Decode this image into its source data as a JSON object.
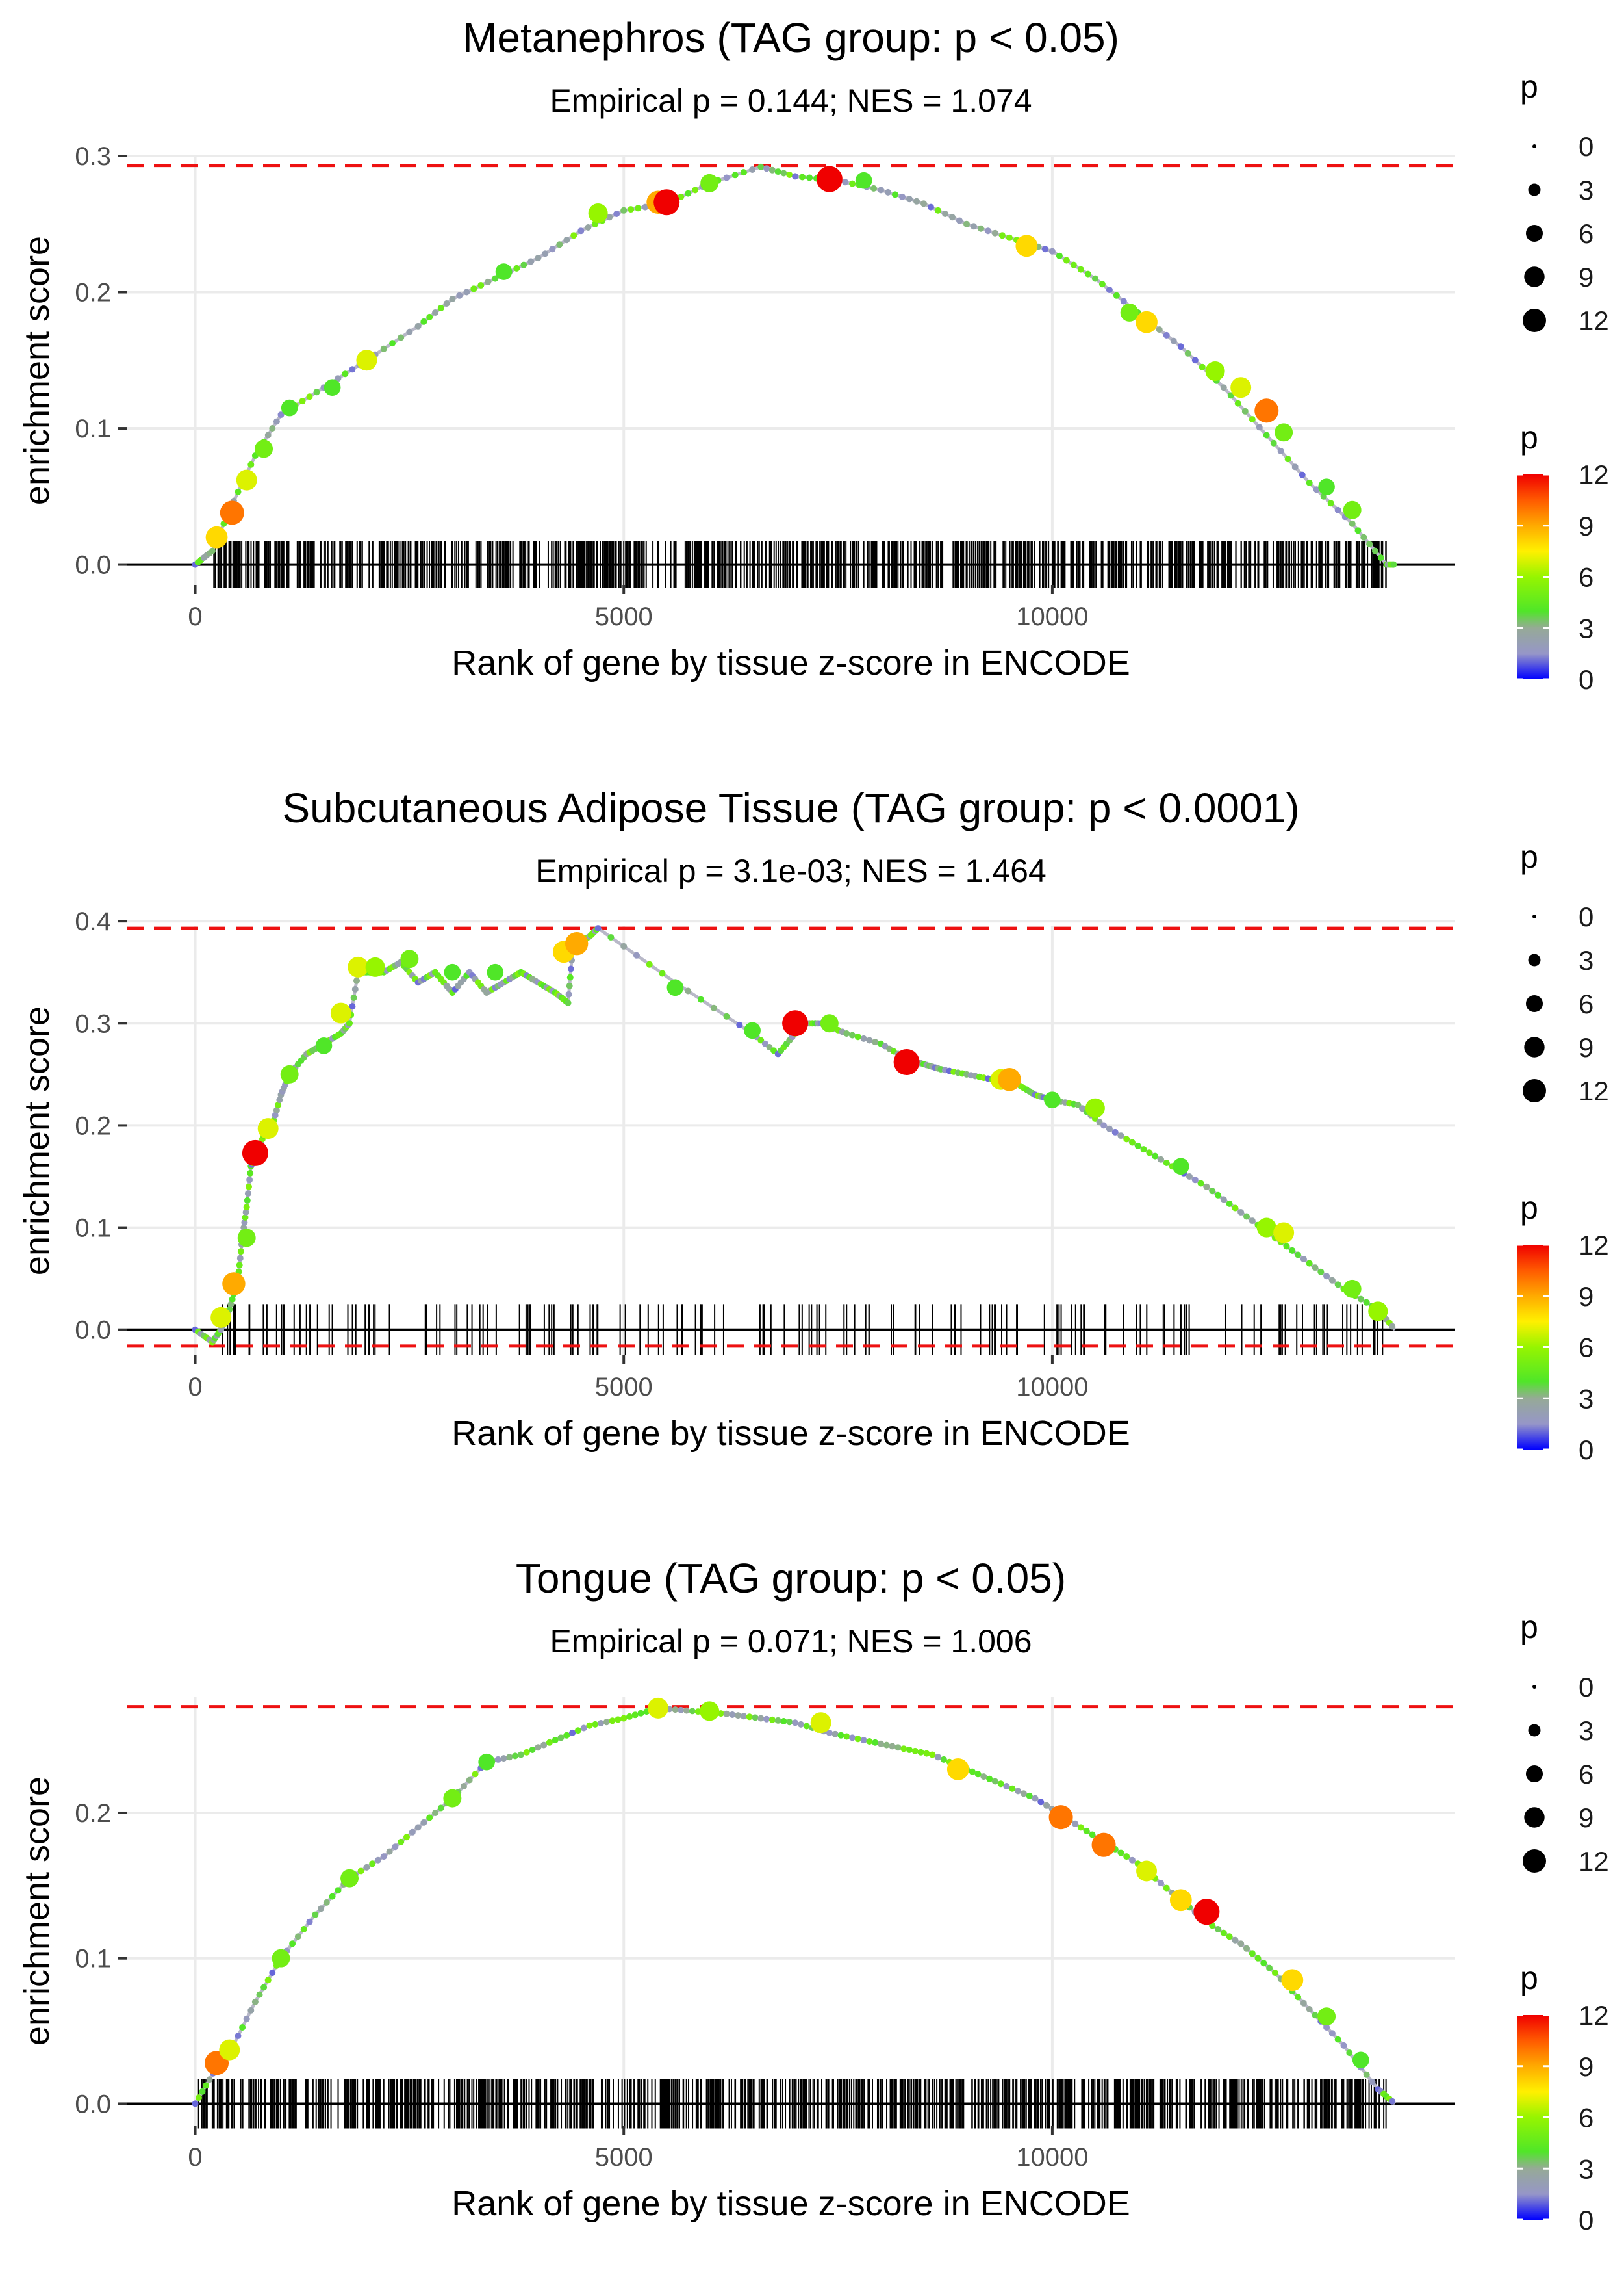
{
  "figure": {
    "type": "gsea-enrichment-panels",
    "n_panels": 3
  },
  "chart_data": [
    {
      "type": "line",
      "title": "Metanephros (TAG group: p < 0.05)",
      "subtitle": "Empirical p = 0.144; NES = 1.074",
      "xlabel": "Rank of gene by tissue z-score in ENCODE",
      "ylabel": "enrichment score",
      "xlim": [
        -800,
        14700
      ],
      "ylim": [
        -0.015,
        0.3
      ],
      "xticks": [
        0,
        5000,
        10000
      ],
      "xtick_labels": [
        "0",
        "5000",
        "10000"
      ],
      "yticks": [
        0,
        0.1,
        0.2,
        0.3
      ],
      "ytick_labels": [
        "0.0",
        "0.1",
        "0.2",
        "0.3"
      ],
      "max_es": 0.293,
      "min_es": 0,
      "n_total_genes": 14000,
      "rug": {
        "start": 200,
        "end": 13900,
        "count": 800,
        "height": 0.017
      },
      "curve_x": [
        0,
        200,
        400,
        700,
        1000,
        1500,
        2000,
        2600,
        3000,
        3500,
        4000,
        4500,
        5000,
        5500,
        6000,
        6600,
        7000,
        7500,
        8000,
        8500,
        9000,
        9500,
        10000,
        10500,
        11000,
        11500,
        12000,
        12500,
        13000,
        13500,
        13900,
        14000
      ],
      "curve_y": [
        0,
        0.01,
        0.04,
        0.08,
        0.11,
        0.13,
        0.15,
        0.175,
        0.195,
        0.21,
        0.225,
        0.245,
        0.26,
        0.265,
        0.28,
        0.292,
        0.285,
        0.282,
        0.275,
        0.265,
        0.25,
        0.24,
        0.23,
        0.21,
        0.185,
        0.16,
        0.13,
        0.095,
        0.06,
        0.03,
        0.0,
        0.0
      ],
      "points": [
        {
          "x": 250,
          "y": 0.02,
          "p": 8
        },
        {
          "x": 430,
          "y": 0.038,
          "p": 10
        },
        {
          "x": 600,
          "y": 0.062,
          "p": 7
        },
        {
          "x": 800,
          "y": 0.085,
          "p": 5
        },
        {
          "x": 1100,
          "y": 0.115,
          "p": 4
        },
        {
          "x": 1600,
          "y": 0.13,
          "p": 4
        },
        {
          "x": 2000,
          "y": 0.15,
          "p": 7
        },
        {
          "x": 3600,
          "y": 0.215,
          "p": 4
        },
        {
          "x": 4700,
          "y": 0.258,
          "p": 6
        },
        {
          "x": 5400,
          "y": 0.266,
          "p": 9
        },
        {
          "x": 5500,
          "y": 0.266,
          "p": 12
        },
        {
          "x": 6000,
          "y": 0.28,
          "p": 5
        },
        {
          "x": 7400,
          "y": 0.283,
          "p": 12
        },
        {
          "x": 7800,
          "y": 0.282,
          "p": 4
        },
        {
          "x": 9700,
          "y": 0.234,
          "p": 8
        },
        {
          "x": 10900,
          "y": 0.185,
          "p": 5
        },
        {
          "x": 11100,
          "y": 0.178,
          "p": 8
        },
        {
          "x": 11900,
          "y": 0.142,
          "p": 6
        },
        {
          "x": 12200,
          "y": 0.13,
          "p": 7
        },
        {
          "x": 12500,
          "y": 0.113,
          "p": 10
        },
        {
          "x": 12700,
          "y": 0.097,
          "p": 5
        },
        {
          "x": 13200,
          "y": 0.057,
          "p": 4
        },
        {
          "x": 13500,
          "y": 0.04,
          "p": 5
        }
      ],
      "legend_size": {
        "title": "p",
        "values": [
          0,
          3,
          6,
          9,
          12
        ],
        "labels": [
          "0",
          "3",
          "6",
          "9",
          "12"
        ]
      },
      "legend_color": {
        "title": "p",
        "values": [
          0,
          3,
          6,
          9,
          12
        ],
        "labels": [
          "0",
          "3",
          "6",
          "9",
          "12"
        ]
      }
    },
    {
      "type": "line",
      "title": "Subcutaneous Adipose Tissue (TAG group: p < 0.0001)",
      "subtitle": "Empirical p = 3.1e-03; NES = 1.464",
      "xlabel": "Rank of gene by tissue z-score in ENCODE",
      "ylabel": "enrichment score",
      "xlim": [
        -800,
        14700
      ],
      "ylim": [
        -0.025,
        0.395
      ],
      "xticks": [
        0,
        5000,
        10000
      ],
      "xtick_labels": [
        "0",
        "5000",
        "10000"
      ],
      "yticks": [
        0,
        0.1,
        0.2,
        0.3,
        0.4
      ],
      "ytick_labels": [
        "0.0",
        "0.1",
        "0.2",
        "0.3",
        "0.4"
      ],
      "max_es": 0.393,
      "min_es": -0.016,
      "n_total_genes": 14000,
      "rug": {
        "start": 200,
        "end": 13900,
        "count": 160,
        "height": 0.025
      },
      "curve_x": [
        0,
        200,
        300,
        400,
        500,
        550,
        600,
        650,
        700,
        800,
        900,
        1000,
        1100,
        1300,
        1500,
        1700,
        1800,
        1900,
        2000,
        2200,
        2400,
        2600,
        2800,
        3000,
        3200,
        3400,
        3600,
        3800,
        4000,
        4200,
        4350,
        4400,
        4500,
        4600,
        4700,
        5600,
        6500,
        6800,
        7000,
        7100,
        7300,
        7600,
        8000,
        8300,
        8500,
        8700,
        9000,
        9300,
        9600,
        9800,
        10000,
        10300,
        10600,
        11000,
        11400,
        11800,
        12200,
        12600,
        13000,
        13400,
        13800,
        14000
      ],
      "curve_y": [
        0,
        -0.012,
        0.0,
        0.02,
        0.05,
        0.09,
        0.12,
        0.16,
        0.17,
        0.19,
        0.2,
        0.23,
        0.25,
        0.27,
        0.28,
        0.29,
        0.3,
        0.35,
        0.35,
        0.35,
        0.36,
        0.34,
        0.35,
        0.33,
        0.35,
        0.33,
        0.34,
        0.35,
        0.34,
        0.33,
        0.32,
        0.37,
        0.38,
        0.385,
        0.393,
        0.34,
        0.29,
        0.27,
        0.29,
        0.3,
        0.3,
        0.29,
        0.28,
        0.265,
        0.26,
        0.255,
        0.25,
        0.245,
        0.24,
        0.23,
        0.225,
        0.22,
        0.2,
        0.18,
        0.16,
        0.14,
        0.115,
        0.09,
        0.065,
        0.04,
        0.02,
        0.0
      ],
      "points": [
        {
          "x": 300,
          "y": 0.012,
          "p": 7
        },
        {
          "x": 450,
          "y": 0.045,
          "p": 9
        },
        {
          "x": 600,
          "y": 0.09,
          "p": 5
        },
        {
          "x": 700,
          "y": 0.173,
          "p": 12
        },
        {
          "x": 850,
          "y": 0.197,
          "p": 7
        },
        {
          "x": 1100,
          "y": 0.25,
          "p": 5
        },
        {
          "x": 1500,
          "y": 0.278,
          "p": 4
        },
        {
          "x": 1700,
          "y": 0.31,
          "p": 7
        },
        {
          "x": 1900,
          "y": 0.355,
          "p": 7
        },
        {
          "x": 2100,
          "y": 0.355,
          "p": 6
        },
        {
          "x": 2500,
          "y": 0.363,
          "p": 5
        },
        {
          "x": 3000,
          "y": 0.35,
          "p": 4
        },
        {
          "x": 3500,
          "y": 0.35,
          "p": 4
        },
        {
          "x": 4300,
          "y": 0.37,
          "p": 8
        },
        {
          "x": 4450,
          "y": 0.378,
          "p": 9
        },
        {
          "x": 5600,
          "y": 0.335,
          "p": 4
        },
        {
          "x": 6500,
          "y": 0.293,
          "p": 4
        },
        {
          "x": 7000,
          "y": 0.3,
          "p": 12
        },
        {
          "x": 7400,
          "y": 0.3,
          "p": 5
        },
        {
          "x": 8300,
          "y": 0.262,
          "p": 12
        },
        {
          "x": 9400,
          "y": 0.245,
          "p": 7
        },
        {
          "x": 9500,
          "y": 0.245,
          "p": 9
        },
        {
          "x": 10000,
          "y": 0.225,
          "p": 4
        },
        {
          "x": 10500,
          "y": 0.217,
          "p": 6
        },
        {
          "x": 11500,
          "y": 0.16,
          "p": 4
        },
        {
          "x": 12500,
          "y": 0.1,
          "p": 6
        },
        {
          "x": 12700,
          "y": 0.095,
          "p": 7
        },
        {
          "x": 13500,
          "y": 0.04,
          "p": 5
        },
        {
          "x": 13800,
          "y": 0.018,
          "p": 6
        }
      ],
      "legend_size": {
        "title": "p",
        "values": [
          0,
          3,
          6,
          9,
          12
        ],
        "labels": [
          "0",
          "3",
          "6",
          "9",
          "12"
        ]
      },
      "legend_color": {
        "title": "p",
        "values": [
          0,
          3,
          6,
          9,
          12
        ],
        "labels": [
          "0",
          "3",
          "6",
          "9",
          "12"
        ]
      }
    },
    {
      "type": "line",
      "title": "Tongue (TAG group: p < 0.05)",
      "subtitle": "Empirical p = 0.071; NES = 1.006",
      "xlabel": "Rank of gene by tissue z-score in ENCODE",
      "ylabel": "enrichment score",
      "xlim": [
        -800,
        14700
      ],
      "ylim": [
        -0.015,
        0.28
      ],
      "xticks": [
        0,
        5000,
        10000
      ],
      "xtick_labels": [
        "0",
        "5000",
        "10000"
      ],
      "yticks": [
        0,
        0.1,
        0.2
      ],
      "ytick_labels": [
        "0.0",
        "0.1",
        "0.2"
      ],
      "max_es": 0.273,
      "min_es": 0,
      "n_total_genes": 14000,
      "rug": {
        "start": 0,
        "end": 13900,
        "count": 800,
        "height": 0.017
      },
      "curve_x": [
        0,
        250,
        400,
        700,
        1000,
        1400,
        1800,
        2200,
        2600,
        3000,
        3400,
        3800,
        4200,
        4600,
        5000,
        5400,
        5800,
        6200,
        6600,
        7000,
        7400,
        7800,
        8200,
        8600,
        9000,
        9400,
        9800,
        10200,
        10600,
        11000,
        11400,
        11800,
        12200,
        12600,
        13000,
        13400,
        13800,
        14000
      ],
      "curve_y": [
        0,
        0.025,
        0.035,
        0.07,
        0.1,
        0.13,
        0.155,
        0.17,
        0.19,
        0.21,
        0.235,
        0.24,
        0.25,
        0.26,
        0.265,
        0.272,
        0.27,
        0.268,
        0.265,
        0.262,
        0.255,
        0.25,
        0.245,
        0.24,
        0.23,
        0.22,
        0.21,
        0.195,
        0.18,
        0.165,
        0.145,
        0.125,
        0.11,
        0.09,
        0.065,
        0.04,
        0.01,
        0.0
      ],
      "points": [
        {
          "x": 250,
          "y": 0.028,
          "p": 10
        },
        {
          "x": 400,
          "y": 0.037,
          "p": 7
        },
        {
          "x": 1000,
          "y": 0.1,
          "p": 5
        },
        {
          "x": 1800,
          "y": 0.155,
          "p": 5
        },
        {
          "x": 3000,
          "y": 0.21,
          "p": 5
        },
        {
          "x": 3400,
          "y": 0.235,
          "p": 4
        },
        {
          "x": 5400,
          "y": 0.272,
          "p": 7
        },
        {
          "x": 6000,
          "y": 0.27,
          "p": 6
        },
        {
          "x": 7300,
          "y": 0.262,
          "p": 7
        },
        {
          "x": 8900,
          "y": 0.23,
          "p": 8
        },
        {
          "x": 10100,
          "y": 0.197,
          "p": 10
        },
        {
          "x": 10600,
          "y": 0.178,
          "p": 10
        },
        {
          "x": 11100,
          "y": 0.16,
          "p": 7
        },
        {
          "x": 11500,
          "y": 0.14,
          "p": 8
        },
        {
          "x": 11800,
          "y": 0.132,
          "p": 12
        },
        {
          "x": 12800,
          "y": 0.085,
          "p": 8
        },
        {
          "x": 13200,
          "y": 0.06,
          "p": 5
        },
        {
          "x": 13600,
          "y": 0.03,
          "p": 4
        }
      ],
      "legend_size": {
        "title": "p",
        "values": [
          0,
          3,
          6,
          9,
          12
        ],
        "labels": [
          "0",
          "3",
          "6",
          "9",
          "12"
        ]
      },
      "legend_color": {
        "title": "p",
        "values": [
          0,
          3,
          6,
          9,
          12
        ],
        "labels": [
          "0",
          "3",
          "6",
          "9",
          "12"
        ]
      }
    }
  ]
}
